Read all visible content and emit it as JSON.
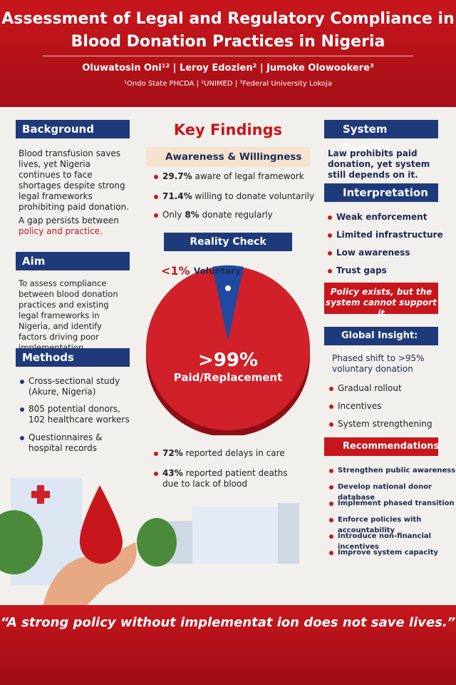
{
  "header": {
    "title_lines": [
      "Assessment of Legal and Regulatory Compliance in",
      "Blood Donation Practices in Nigeria"
    ],
    "authors": "Oluwatosin Oni¹² | Leroy Edozien² | Jumoke Olowookere³",
    "affiliations": "¹Ondo State PHCDA | ²UNIMED | ³Federal University Lokoja"
  },
  "left": {
    "background": {
      "heading": "Background",
      "text": "Blood transfusion saves lives, yet Nigeria continues to face shortages despite strong legal frameworks prohibiting paid donation.",
      "gap_lead": "A gap persists between",
      "gap_highlight": "policy and practice."
    },
    "aim": {
      "heading": "Aim",
      "text": "To assess compliance between blood donation practices and existing legal frameworks in Nigeria, and identify factors driving poor implementation."
    },
    "methods": {
      "heading": "Methods",
      "items": [
        "Cross-sectional study (Akure, Nigeria)",
        "805 potential donors, 102 healthcare workers",
        "Questionnaires & hospital records"
      ]
    }
  },
  "center": {
    "title": "Key Findings",
    "awareness": {
      "heading": "Awareness & Willingness",
      "items": [
        {
          "strong": "29.7%",
          "rest": "aware of legal framework"
        },
        {
          "strong": "71.4%",
          "rest": "willing to donate voluntarily"
        },
        {
          "lead": "Only",
          "strong": "8%",
          "rest": "donate regularly"
        }
      ]
    },
    "reality_check": "Reality Check",
    "voluntary_value": "<1%",
    "voluntary_label": "Voluntary",
    "paid_value": ">99%",
    "paid_label": "Paid/Replacement",
    "outcomes": [
      {
        "strong": "72%",
        "rest": "reported delays in care"
      },
      {
        "strong": "43%",
        "rest": "reported patient deaths due to lack of blood"
      }
    ]
  },
  "right": {
    "paradox": {
      "heading": "System Paradox",
      "text": "Law prohibits paid donation, yet system still depends on it."
    },
    "interpretation": {
      "heading": "Interpretation",
      "items": [
        "Weak enforcement",
        "Limited infrastructure",
        "Low awareness",
        "Trust gaps"
      ]
    },
    "callout": "Policy exists, but the system cannot support it",
    "global": {
      "heading": "Global Insight: China",
      "text": "Phased shift to >95% voluntary donation",
      "items": [
        "Gradual rollout",
        "Incentives",
        "System strengthening"
      ]
    },
    "recommendations": {
      "heading": "Recommendations",
      "items": [
        "Strengthen public awareness",
        "Develop national donor database",
        "Implement phased transition",
        "Enforce policies with accountability",
        "Introduce non-financial incentives",
        "Improve system capacity"
      ]
    }
  },
  "quote": "“A strong policy without implementat ion does not save lives.”"
}
